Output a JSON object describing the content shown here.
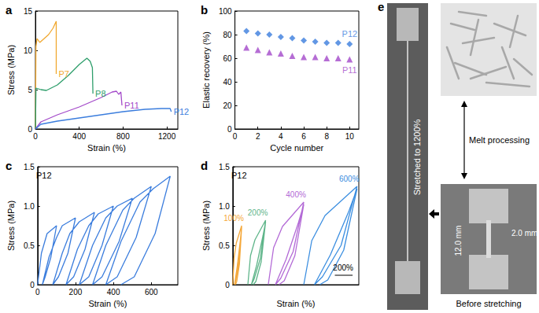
{
  "chart_data": [
    {
      "type": "line",
      "title": "a",
      "x_label": "Strain (%)",
      "y_label": "Stress (MPa)",
      "xlim": [
        0,
        1300
      ],
      "ylim": [
        0,
        15
      ],
      "xticks": [
        0,
        400,
        800,
        1200
      ],
      "yticks": [
        0,
        5,
        10,
        15
      ],
      "grid": false,
      "series": [
        {
          "name": "P7",
          "color": "#f0a830",
          "x": [
            0,
            5,
            15,
            40,
            80,
            120,
            160,
            190,
            190
          ],
          "values": [
            0,
            10.5,
            11.5,
            11,
            11.5,
            12,
            12.8,
            13.7,
            7
          ]
        },
        {
          "name": "P8",
          "color": "#2e9e6b",
          "x": [
            0,
            5,
            50,
            100,
            200,
            300,
            400,
            470,
            500,
            520,
            525
          ],
          "values": [
            0,
            5.2,
            5,
            4.9,
            5.6,
            6.8,
            8.2,
            9,
            8.6,
            7.8,
            4.5
          ]
        },
        {
          "name": "P11",
          "color": "#a349c9",
          "x": [
            0,
            50,
            200,
            400,
            600,
            700,
            740,
            760,
            780,
            790
          ],
          "values": [
            0,
            0.9,
            1.8,
            2.8,
            4,
            4.7,
            4.8,
            4.4,
            4.7,
            3
          ]
        },
        {
          "name": "P12",
          "color": "#3b7ddd",
          "x": [
            0,
            50,
            200,
            400,
            600,
            800,
            1000,
            1150,
            1230,
            1240
          ],
          "values": [
            0,
            0.6,
            1,
            1.4,
            1.8,
            2.2,
            2.5,
            2.6,
            2.6,
            2.2
          ]
        }
      ]
    },
    {
      "type": "scatter",
      "title": "b",
      "x_label": "Cycle number",
      "y_label": "Elastic recovery (%)",
      "xlim": [
        0,
        10.8
      ],
      "ylim": [
        0,
        100
      ],
      "xticks": [
        0,
        2,
        4,
        6,
        8,
        10
      ],
      "yticks": [
        0,
        20,
        40,
        60,
        80,
        100
      ],
      "grid": false,
      "x": [
        1,
        2,
        3,
        4,
        5,
        6,
        7,
        8,
        9,
        10
      ],
      "series": [
        {
          "name": "P12",
          "color": "#3b7ddd",
          "marker": "diamond",
          "values": [
            83,
            81,
            80,
            78,
            77,
            75,
            74,
            73,
            73,
            72
          ]
        },
        {
          "name": "P11",
          "color": "#a349c9",
          "marker": "triangle",
          "values": [
            69,
            67,
            65,
            64,
            62,
            61,
            61,
            60,
            60,
            59
          ]
        }
      ]
    },
    {
      "type": "line",
      "title": "c",
      "annotation": "P12",
      "x_label": "Strain (%)",
      "y_label": "Stress (MPa)",
      "xlim": [
        0,
        740
      ],
      "ylim": [
        0,
        1.5
      ],
      "xticks": [
        0,
        200,
        400,
        600
      ],
      "yticks": [
        0,
        0.5,
        {
          "value": 1,
          "label": "1.0"
        },
        1.5
      ],
      "grid": false,
      "series": [
        {
          "color": "#3b7ddd",
          "x": [
            0,
            20,
            50,
            100,
            70,
            40,
            25,
            60,
            100,
            130,
            200,
            160,
            110,
            80,
            130,
            170,
            220,
            300,
            250,
            190,
            150,
            210,
            270,
            320,
            400,
            340,
            270,
            220,
            290,
            360,
            420,
            500,
            430,
            340,
            290,
            360,
            450,
            510,
            600,
            520,
            420,
            360,
            440,
            540,
            610,
            700,
            620,
            510,
            440
          ],
          "values": [
            0,
            0.4,
            0.65,
            0.75,
            0.35,
            0.1,
            0,
            0.35,
            0.6,
            0.75,
            0.85,
            0.4,
            0.1,
            0,
            0.4,
            0.65,
            0.8,
            0.92,
            0.45,
            0.1,
            0,
            0.45,
            0.75,
            0.9,
            1,
            0.5,
            0.1,
            0,
            0.5,
            0.85,
            1,
            1.1,
            0.55,
            0.1,
            0,
            0.5,
            0.95,
            1.1,
            1.25,
            0.6,
            0.1,
            0,
            0.55,
            1.05,
            1.22,
            1.38,
            0.65,
            0.1,
            0
          ]
        }
      ]
    },
    {
      "type": "line",
      "title": "d",
      "annotation": "P12",
      "x_label": "Strain (%)",
      "y_label": "Stress (MPa)",
      "xlim": [
        0,
        1420
      ],
      "ylim": [
        0,
        1.5
      ],
      "yticks": [
        0,
        0.5,
        {
          "value": 1,
          "label": "1.0"
        },
        1.5
      ],
      "grid": false,
      "tick_labels": "y",
      "series": [
        {
          "color": "#f5a83a",
          "x": [
            0,
            15,
            40,
            100,
            70,
            35,
            20,
            50,
            85,
            100,
            75,
            45,
            30
          ],
          "values": [
            0,
            0.34,
            0.53,
            0.75,
            0.3,
            0.06,
            0,
            0.23,
            0.56,
            0.73,
            0.26,
            0.04,
            0
          ]
        },
        {
          "color": "#5fb58a",
          "x": [
            170,
            200,
            250,
            370,
            310,
            240,
            210,
            270,
            340,
            370,
            320,
            260,
            230
          ],
          "values": [
            0,
            0.37,
            0.57,
            0.82,
            0.33,
            0.07,
            0,
            0.25,
            0.62,
            0.8,
            0.29,
            0.04,
            0
          ]
        },
        {
          "color": "#b36ad6",
          "x": [
            400,
            460,
            560,
            800,
            680,
            540,
            480,
            600,
            740,
            800,
            700,
            580,
            520
          ],
          "values": [
            0,
            0.47,
            0.74,
            1.05,
            0.42,
            0.08,
            0,
            0.32,
            0.79,
            1.02,
            0.37,
            0.05,
            0
          ]
        },
        {
          "color": "#3b8ee0",
          "x": [
            800,
            890,
            1040,
            1400,
            1220,
            1010,
            920,
            1100,
            1310,
            1400,
            1250,
            1070,
            980
          ],
          "values": [
            0,
            0.56,
            0.88,
            1.25,
            0.5,
            0.1,
            0,
            0.38,
            0.94,
            1.22,
            0.44,
            0.06,
            0
          ]
        }
      ],
      "curve_labels": [
        {
          "text": "100%",
          "x": 100,
          "y": 0.75,
          "color": "#f5a83a"
        },
        {
          "text": "200%",
          "x": 370,
          "y": 0.82,
          "color": "#5fb58a"
        },
        {
          "text": "400%",
          "x": 800,
          "y": 1.05,
          "color": "#b36ad6"
        },
        {
          "text": "600%",
          "x": 1400,
          "y": 1.25,
          "color": "#3b8ee0"
        }
      ],
      "scale_bar": {
        "x": [
          1150,
          1350
        ],
        "y": 0.12,
        "label": "200%"
      }
    }
  ],
  "photo_panel": {
    "title": "e",
    "stretched_label": "Stretched to 1200%",
    "process_label": "Melt processing",
    "length_label": "12.0 mm",
    "width_label": "2.0 mm",
    "caption": "Before stretching"
  }
}
